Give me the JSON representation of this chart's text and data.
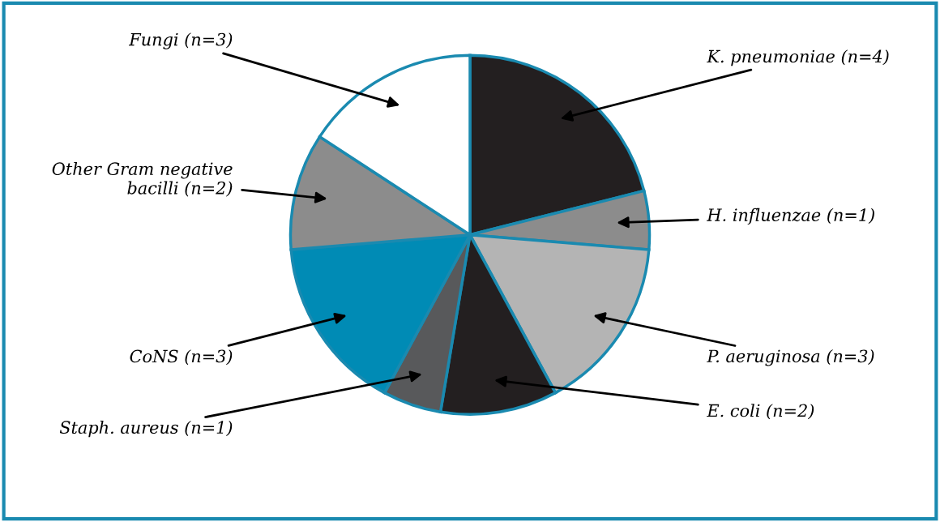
{
  "chart_data": {
    "type": "pie",
    "categories": [
      "K. pneumoniae",
      "H. influenzae",
      "P. aeruginosa",
      "E. coli",
      "Staph. aureus",
      "CoNS",
      "Other Gram negative bacilli",
      "Fungi"
    ],
    "values": [
      4,
      1,
      3,
      2,
      1,
      3,
      2,
      3
    ],
    "value_labels": [
      "(n=4)",
      "(n=1)",
      "(n=3)",
      "(n=2)",
      "(n=1)",
      "(n=3)",
      "(n=2)",
      "(n=3)"
    ],
    "colors": [
      "#231f20",
      "#8c8c8c",
      "#b4b4b4",
      "#231f20",
      "#58595b",
      "#008bb5",
      "#8c8c8c",
      "#ffffff"
    ]
  }
}
